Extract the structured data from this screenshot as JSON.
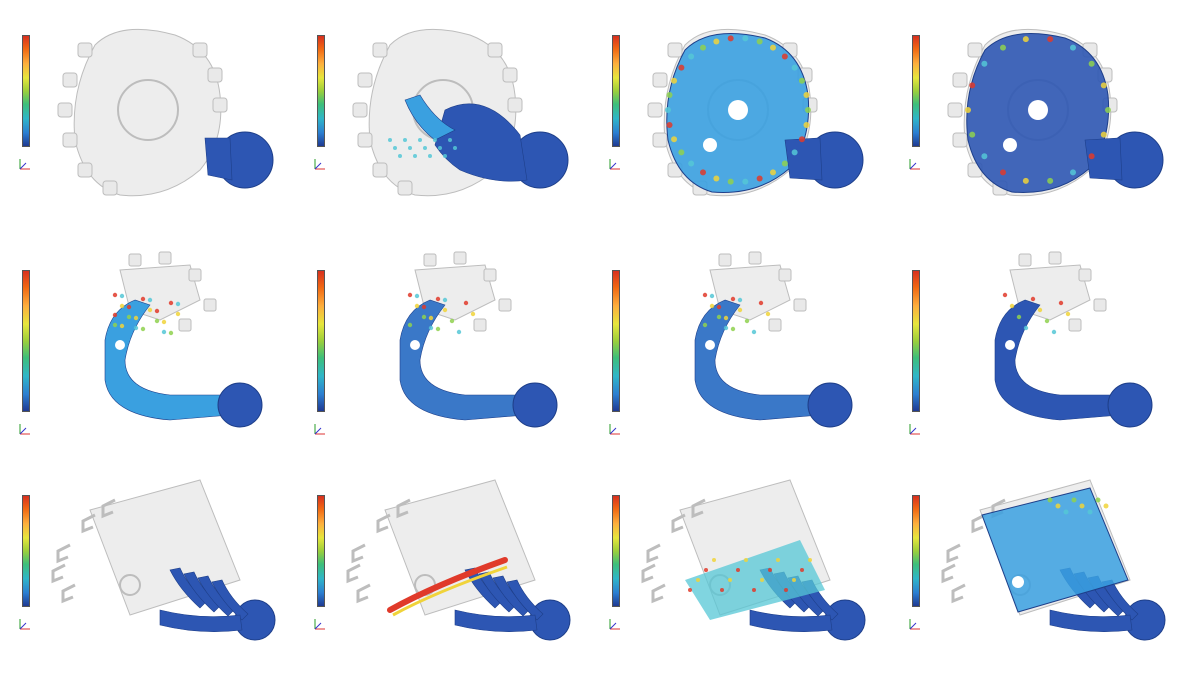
{
  "figure": {
    "panels": [
      {
        "id": "r1c1",
        "row": 1,
        "col": 1,
        "geometry": "housing-round",
        "fill": "gate-only",
        "title": "",
        "subtitle": "",
        "legend_max": "",
        "legend_min": ""
      },
      {
        "id": "r1c2",
        "row": 1,
        "col": 2,
        "geometry": "housing-round",
        "fill": "partial",
        "title": "",
        "subtitle": "",
        "legend_max": "",
        "legend_min": ""
      },
      {
        "id": "r1c3",
        "row": 1,
        "col": 3,
        "geometry": "housing-round",
        "fill": "mostly-filled",
        "title": "",
        "subtitle": "",
        "legend_max": "",
        "legend_min": ""
      },
      {
        "id": "r1c4",
        "row": 1,
        "col": 4,
        "geometry": "housing-round",
        "fill": "filled",
        "title": "",
        "subtitle": "",
        "legend_max": "",
        "legend_min": ""
      },
      {
        "id": "r2c1",
        "row": 2,
        "col": 1,
        "geometry": "bracket-arm",
        "fill": "partial",
        "title": "",
        "subtitle": "",
        "legend_max": "",
        "legend_min": ""
      },
      {
        "id": "r2c2",
        "row": 2,
        "col": 2,
        "geometry": "bracket-arm",
        "fill": "mostly-filled",
        "title": "",
        "subtitle": "",
        "legend_max": "",
        "legend_min": ""
      },
      {
        "id": "r2c3",
        "row": 2,
        "col": 3,
        "geometry": "bracket-arm",
        "fill": "mostly-filled",
        "title": "",
        "subtitle": "",
        "legend_max": "",
        "legend_min": ""
      },
      {
        "id": "r2c4",
        "row": 2,
        "col": 4,
        "geometry": "bracket-arm",
        "fill": "filled",
        "title": "",
        "subtitle": "",
        "legend_max": "",
        "legend_min": ""
      },
      {
        "id": "r3c1",
        "row": 3,
        "col": 1,
        "geometry": "housing-rect",
        "fill": "gate-only",
        "title": "",
        "subtitle": "",
        "legend_max": "",
        "legend_min": ""
      },
      {
        "id": "r3c2",
        "row": 3,
        "col": 2,
        "geometry": "housing-rect",
        "fill": "partial",
        "title": "",
        "subtitle": "",
        "legend_max": "",
        "legend_min": ""
      },
      {
        "id": "r3c3",
        "row": 3,
        "col": 3,
        "geometry": "housing-rect",
        "fill": "mostly-filled",
        "title": "",
        "subtitle": "",
        "legend_max": "",
        "legend_min": ""
      },
      {
        "id": "r3c4",
        "row": 3,
        "col": 4,
        "geometry": "housing-rect",
        "fill": "filled",
        "title": "",
        "subtitle": "",
        "legend_max": "",
        "legend_min": ""
      }
    ],
    "colors": {
      "metal_blue": "#2d56b3",
      "metal_light": "#3aa0e0",
      "cyan": "#55c7d6",
      "green": "#8fd14f",
      "yellow": "#f0d33a",
      "red": "#e03a2a",
      "ghost_fill": "#e9e9e9",
      "ghost_stroke": "#bdbdbd",
      "background": "#ffffff"
    }
  }
}
